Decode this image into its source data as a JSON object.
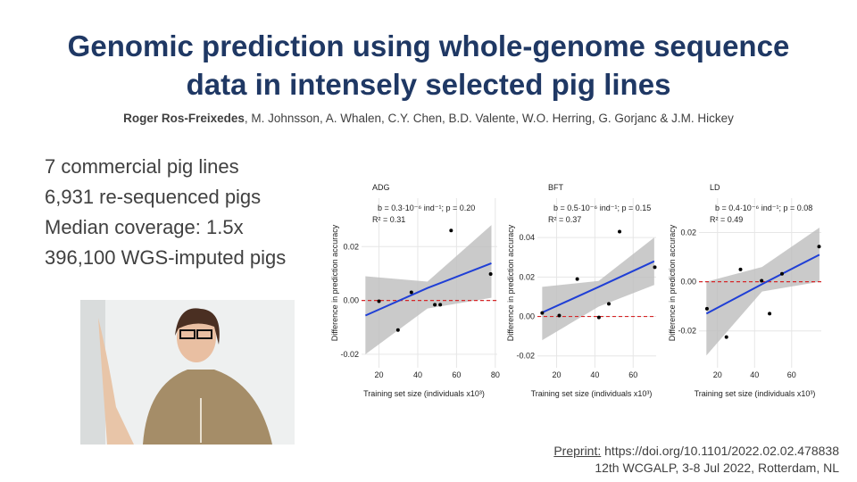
{
  "header": {
    "title": "Genomic prediction using whole-genome sequence data in intensely selected pig lines",
    "lead_author": "Roger Ros-Freixedes",
    "coauthors": ", M. Johnsson, A. Whalen, C.Y. Chen, B.D. Valente, W.O. Herring, G. Gorjanc & J.M. Hickey"
  },
  "bullets": [
    "7 commercial pig lines",
    "6,931 re-sequenced pigs",
    "Median coverage: 1.5x",
    "396,100 WGS-imputed pigs"
  ],
  "footer": {
    "preprint_label": "Preprint:",
    "preprint_url": "https://doi.org/10.1101/2022.02.02.478838",
    "conference": "12th WCGALP, 3-8 Jul 2022, Rotterdam, NL"
  },
  "chart_data": [
    {
      "type": "scatter",
      "title": "ADG",
      "annotation": "b = 0.3·10⁻⁶ ind⁻¹; p = 0.20",
      "r2": "R² = 0.31",
      "x_label": "Training set size (individuals x10³)",
      "y_label": "Difference in prediction accuracy",
      "x": [
        20,
        29.8,
        36.7,
        48.8,
        51.6,
        57.2,
        77.6
      ],
      "values": [
        -0.0003,
        -0.011,
        0.003,
        -0.0016,
        -0.0016,
        0.026,
        0.0098
      ],
      "color": "#000000",
      "fit": {
        "x": [
          13,
          45,
          78
        ],
        "y": [
          -0.0056,
          0.0046,
          0.0138
        ],
        "lower": [
          -0.02,
          -0.003,
          0.001
        ],
        "upper": [
          0.009,
          0.007,
          0.028
        ],
        "color": "#1f3fd6",
        "band_color": "#bdbdbd"
      },
      "reference_line": 0,
      "reference_color": "#d62728",
      "xlim": [
        11,
        81
      ],
      "xticks": [
        20,
        40,
        60,
        80
      ],
      "ylim": [
        -0.025,
        0.038
      ],
      "yticks": [
        {
          "value": -0.02,
          "label": "-0.02"
        },
        {
          "value": 0,
          "label": "0.00"
        },
        {
          "value": 0.02,
          "label": "0.02"
        }
      ],
      "grid": true
    },
    {
      "type": "scatter",
      "title": "BFT",
      "annotation": "b = 0.5·10⁻⁶ ind⁻¹; p = 0.15",
      "r2": "R² = 0.37",
      "x_label": "Training set size (individuals x10³)",
      "y_label": "Difference in prediction accuracy",
      "x": [
        12.5,
        21.4,
        30.8,
        42.1,
        47.3,
        52.9,
        71.3
      ],
      "values": [
        0.0018,
        0.0005,
        0.019,
        -0.0005,
        0.0064,
        0.043,
        0.025
      ],
      "color": "#000000",
      "fit": {
        "x": [
          12.5,
          42,
          71
        ],
        "y": [
          0.002,
          0.015,
          0.028
        ],
        "lower": [
          -0.012,
          0.005,
          0.016
        ],
        "upper": [
          0.015,
          0.018,
          0.04
        ],
        "color": "#1f3fd6",
        "band_color": "#bdbdbd"
      },
      "reference_line": 0,
      "reference_color": "#d62728",
      "xlim": [
        10,
        72
      ],
      "xticks": [
        20,
        40,
        60
      ],
      "ylim": [
        -0.026,
        0.06
      ],
      "yticks": [
        {
          "value": -0.02,
          "label": "-0.02"
        },
        {
          "value": 0,
          "label": "0.00"
        },
        {
          "value": 0.02,
          "label": "0.02"
        },
        {
          "value": 0.04,
          "label": "0.04"
        }
      ],
      "grid": true
    },
    {
      "type": "scatter",
      "title": "LD",
      "annotation": "b = 0.4·10⁻⁶ ind⁻¹; p = 0.08",
      "r2": "R² = 0.49",
      "x_label": "Training set size (individuals x10³)",
      "y_label": "Difference in prediction accuracy",
      "x": [
        14.3,
        24.8,
        32.4,
        43.8,
        48.1,
        54.8,
        74.8
      ],
      "values": [
        -0.011,
        -0.0225,
        0.005,
        0.0004,
        -0.013,
        0.0032,
        0.0143
      ],
      "color": "#000000",
      "fit": {
        "x": [
          14,
          44,
          75
        ],
        "y": [
          -0.013,
          -0.001,
          0.011
        ],
        "lower": [
          -0.03,
          -0.004,
          0
        ],
        "upper": [
          0,
          0.006,
          0.022
        ],
        "color": "#1f3fd6",
        "band_color": "#bdbdbd"
      },
      "reference_line": 0,
      "reference_color": "#d62728",
      "xlim": [
        10,
        76
      ],
      "xticks": [
        20,
        40,
        60
      ],
      "ylim": [
        -0.035,
        0.034
      ],
      "yticks": [
        {
          "value": -0.02,
          "label": "-0.02"
        },
        {
          "value": 0,
          "label": "0.00"
        },
        {
          "value": 0.02,
          "label": "0.02"
        }
      ],
      "grid": true
    }
  ]
}
